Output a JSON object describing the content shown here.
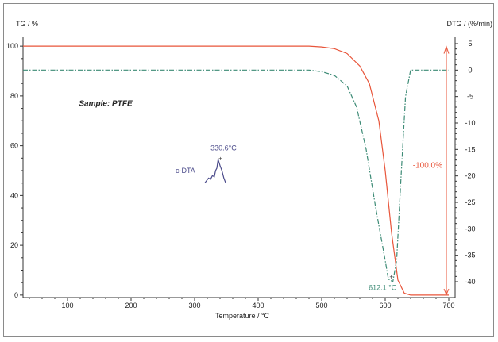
{
  "chart_data": {
    "type": "line",
    "title": "",
    "sample_label": "Sample: PTFE",
    "xlabel": "Temperature / °C",
    "ylabel_left": "TG / %",
    "ylabel_right": "DTG / (%/min)",
    "xlim": [
      30,
      710
    ],
    "ylim_left": [
      -1,
      101
    ],
    "ylim_right": [
      -43,
      5
    ],
    "x_ticks": [
      100,
      200,
      300,
      400,
      500,
      600,
      700
    ],
    "y_left_ticks": [
      0,
      20,
      40,
      60,
      80,
      100
    ],
    "y_right_ticks": [
      5,
      0,
      -5,
      -10,
      -15,
      -20,
      -25,
      -30,
      -35,
      -40
    ],
    "grid": false,
    "series": [
      {
        "axis": "left",
        "color": "#e8553a",
        "style": "solid",
        "x": [
          30,
          480,
          500,
          520,
          540,
          560,
          575,
          590,
          600,
          610,
          620,
          630,
          640,
          660,
          700
        ],
        "y": [
          100,
          100,
          99.7,
          99,
          97,
          92,
          85,
          70,
          50,
          25,
          6,
          0.8,
          0,
          0,
          0
        ]
      },
      {
        "axis": "right",
        "color": "#3d8b76",
        "style": "dashdot",
        "x": [
          30,
          480,
          500,
          520,
          540,
          555,
          570,
          585,
          600,
          605,
          612,
          618,
          625,
          632,
          640,
          660,
          700
        ],
        "y": [
          0,
          0,
          -0.3,
          -1,
          -3,
          -7,
          -15,
          -26,
          -36,
          -39.5,
          -40,
          -36,
          -20,
          -5,
          0,
          0,
          0
        ]
      },
      {
        "axis": "left",
        "color": "#4a4a8a",
        "style": "solid",
        "x": [
          316,
          319,
          322,
          325,
          328,
          331,
          333,
          335,
          337,
          340,
          343,
          346,
          349
        ],
        "y": [
          45,
          46,
          47,
          46.5,
          48,
          47.5,
          50,
          51,
          54.5,
          52,
          50,
          47,
          45
        ]
      }
    ],
    "annotations": {
      "cdta_label": "c-DTA",
      "cdta_peak_label": "330.6°C",
      "cdta_peak": [
        330.6,
        55
      ],
      "dtg_peak_label": "612.1 °C",
      "dtg_peak": [
        612.1,
        7.5
      ],
      "mass_change_label": "-100.0%",
      "mass_change_x": 700
    }
  }
}
